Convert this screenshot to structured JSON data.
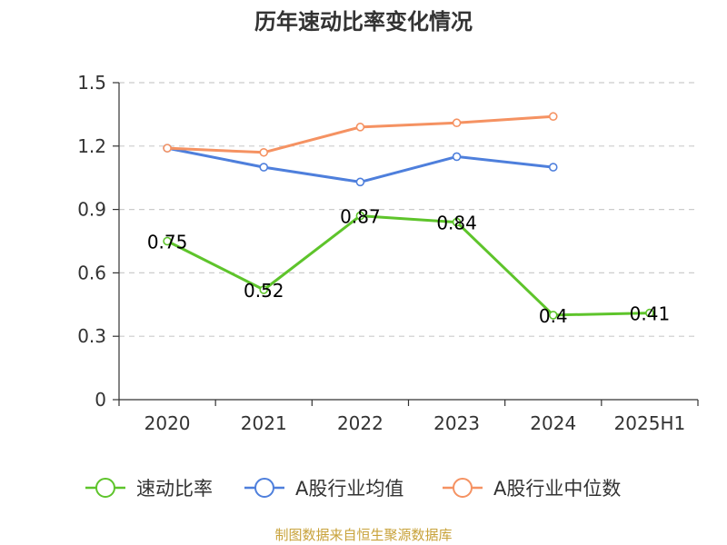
{
  "chart_data": {
    "type": "line",
    "title": "历年速动比率变化情况",
    "categories": [
      "2020",
      "2021",
      "2022",
      "2023",
      "2024",
      "2025H1"
    ],
    "ylim": [
      0,
      1.5
    ],
    "yticks": [
      0,
      0.3,
      0.6,
      0.9,
      1.2,
      1.5
    ],
    "ytick_labels": [
      "0",
      "0.3",
      "0.6",
      "0.9",
      "1.2",
      "1.5"
    ],
    "grid": true,
    "legend_position": "bottom",
    "series": [
      {
        "name": "速动比率",
        "color": "#5ec42b",
        "values": [
          0.75,
          0.52,
          0.87,
          0.84,
          0.4,
          0.41
        ],
        "labels": [
          "0.75",
          "0.52",
          "0.87",
          "0.84",
          "0.4",
          "0.41"
        ],
        "show_labels": true
      },
      {
        "name": "A股行业均值",
        "color": "#4e7fdc",
        "values": [
          1.19,
          1.1,
          1.03,
          1.15,
          1.1,
          null
        ],
        "show_labels": false
      },
      {
        "name": "A股行业中位数",
        "color": "#f59262",
        "values": [
          1.19,
          1.17,
          1.29,
          1.31,
          1.34,
          null
        ],
        "show_labels": false
      }
    ]
  },
  "source": "制图数据来自恒生聚源数据库"
}
